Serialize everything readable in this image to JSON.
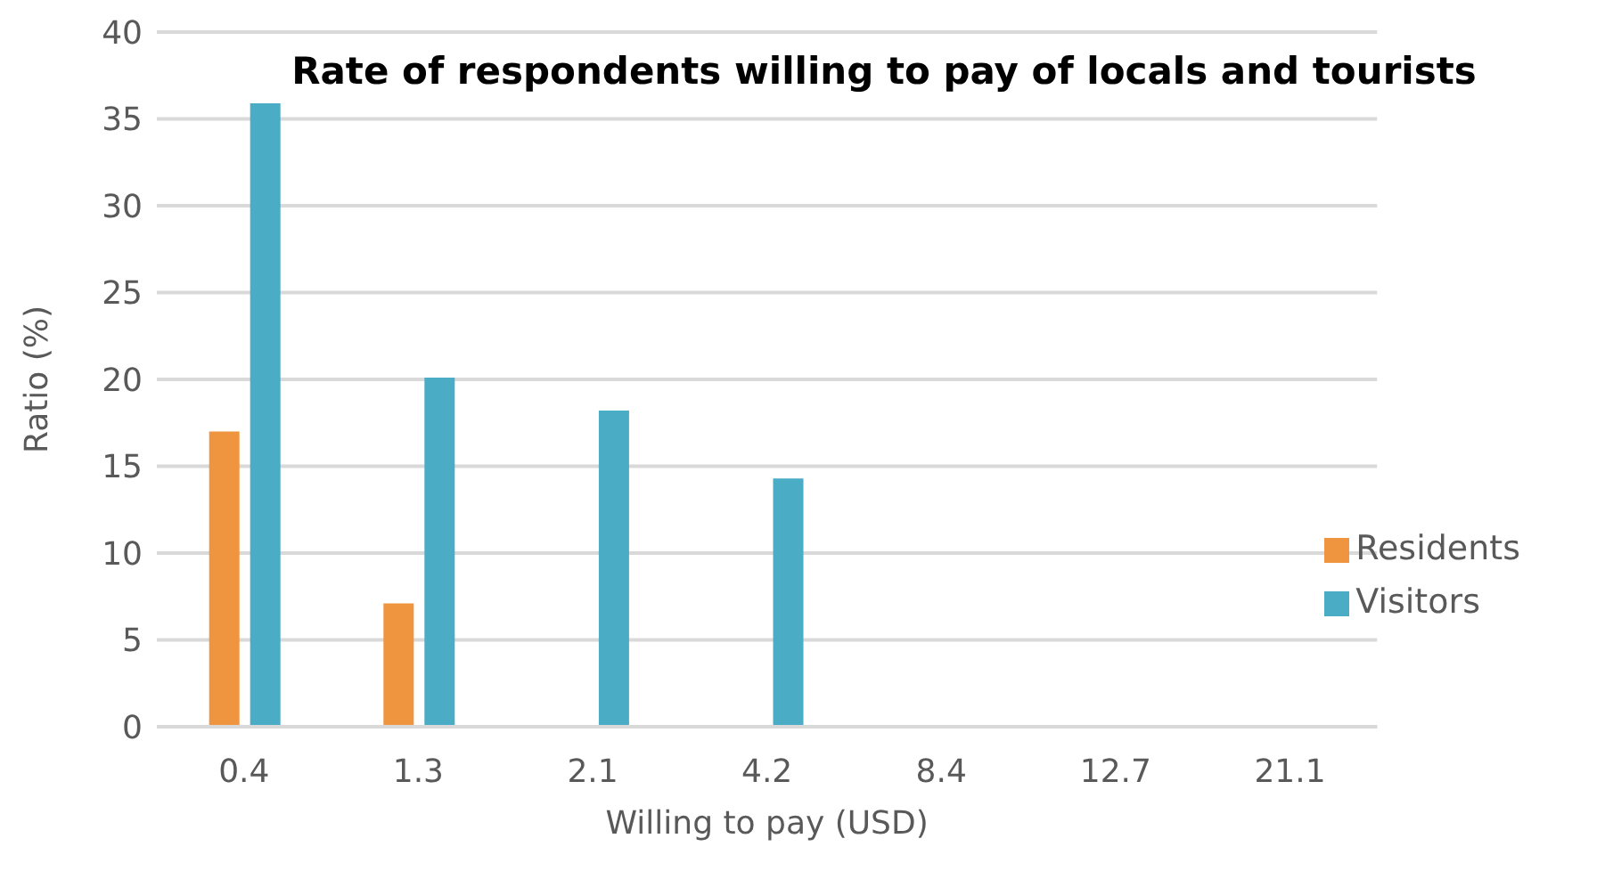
{
  "chart_data": {
    "type": "bar",
    "title": "Rate of respondents willing to pay of locals and tourists",
    "xlabel": "Willing to pay (USD)",
    "ylabel": "Ratio (%)",
    "categories": [
      "0.4",
      "1.3",
      "2.1",
      "4.2",
      "8.4",
      "12.7",
      "21.1"
    ],
    "series": [
      {
        "name": "Residents",
        "color": "#f0953f",
        "values": [
          17,
          7.1,
          0,
          0,
          0,
          0,
          0
        ]
      },
      {
        "name": "Visitors",
        "color": "#4bacc6",
        "values": [
          35.9,
          20.1,
          18.2,
          14.3,
          0,
          0,
          0
        ]
      }
    ],
    "ylim": [
      0,
      40
    ],
    "yticks": [
      0,
      5,
      10,
      15,
      20,
      25,
      30,
      35,
      40
    ],
    "grid": "y",
    "legend": "right"
  }
}
